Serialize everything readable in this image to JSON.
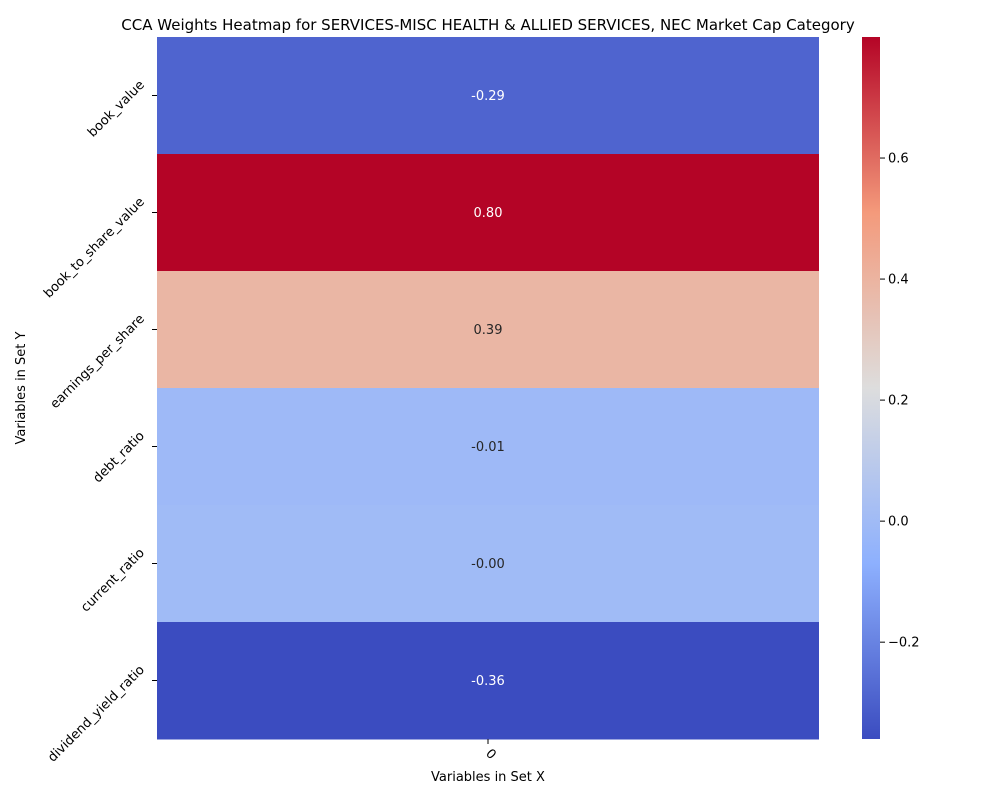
{
  "chart_data": {
    "type": "heatmap",
    "title": "CCA Weights Heatmap for SERVICES-MISC HEALTH & ALLIED SERVICES, NEC Market Cap Category",
    "xlabel": "Variables in Set X",
    "ylabel": "Variables in Set Y",
    "x_categories": [
      "0"
    ],
    "y_categories": [
      "book_value",
      "book_to_share_value",
      "earnings_per_share",
      "debt_ratio",
      "current_ratio",
      "dividend_yield_ratio"
    ],
    "values": [
      -0.29,
      0.8,
      0.39,
      -0.01,
      -0.0,
      -0.36
    ],
    "value_labels": [
      "-0.29",
      "0.80",
      "0.39",
      "-0.01",
      "-0.00",
      "-0.36"
    ],
    "colormap": "coolwarm",
    "colorbar": {
      "vmin": -0.36,
      "vmax": 0.8,
      "ticks": [
        -0.2,
        0.0,
        0.2,
        0.4,
        0.6
      ],
      "tick_labels": [
        "−0.2",
        "0.0",
        "0.2",
        "0.4",
        "0.6"
      ]
    }
  }
}
